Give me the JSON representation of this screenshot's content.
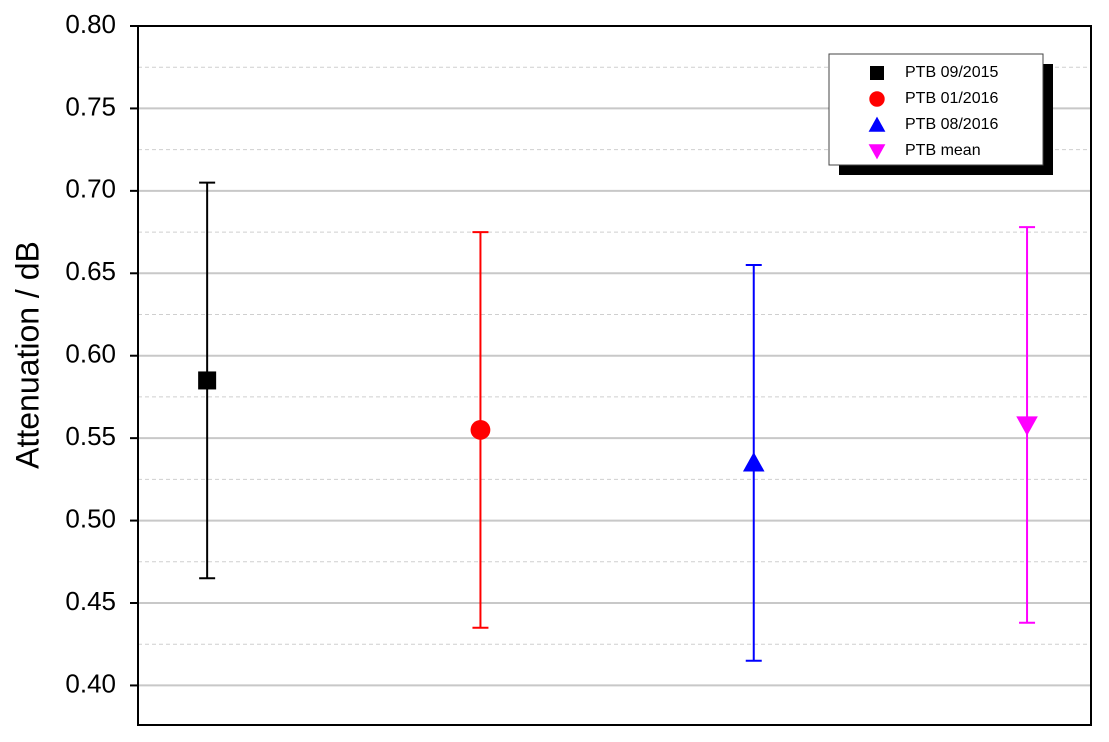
{
  "chart_data": {
    "type": "errorbar",
    "y_label": "Attenuation / dB",
    "xlim": [
      0.747,
      4.234
    ],
    "ylim": [
      0.376,
      0.8
    ],
    "yticks": [
      {
        "value": 0.4,
        "label": "0.40"
      },
      {
        "value": 0.45,
        "label": "0.45"
      },
      {
        "value": 0.5,
        "label": "0.50"
      },
      {
        "value": 0.55,
        "label": "0.55"
      },
      {
        "value": 0.6,
        "label": "0.60"
      },
      {
        "value": 0.65,
        "label": "0.65"
      },
      {
        "value": 0.7,
        "label": "0.70"
      },
      {
        "value": 0.75,
        "label": "0.75"
      },
      {
        "value": 0.8,
        "label": "0.80"
      }
    ],
    "grid": true,
    "minor_grid": true,
    "legend": "upper right",
    "series": [
      {
        "name": "PTB 09/2015",
        "color": "#000000",
        "marker": "square",
        "x": [
          1
        ],
        "values": [
          0.585
        ],
        "errors": [
          0.12
        ]
      },
      {
        "name": "PTB 01/2016",
        "color": "#ff0000",
        "marker": "circle",
        "x": [
          2
        ],
        "values": [
          0.555
        ],
        "errors": [
          0.12
        ]
      },
      {
        "name": "PTB 08/2016",
        "color": "#0000ff",
        "marker": "triangle-up",
        "x": [
          3
        ],
        "values": [
          0.535
        ],
        "errors": [
          0.12
        ]
      },
      {
        "name": "PTB mean",
        "color": "#ff00ff",
        "marker": "triangle-down",
        "x": [
          4
        ],
        "values": [
          0.558
        ],
        "errors": [
          0.12
        ]
      }
    ]
  }
}
